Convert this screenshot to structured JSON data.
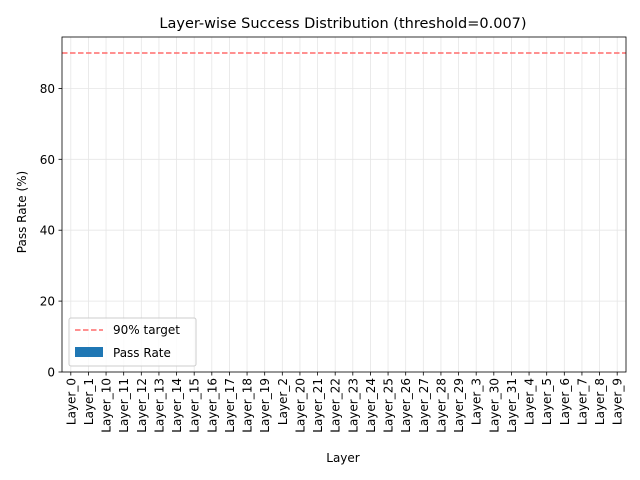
{
  "chart_data": {
    "type": "bar",
    "title": "Layer-wise Success Distribution (threshold=0.007)",
    "xlabel": "Layer",
    "ylabel": "Pass Rate (%)",
    "categories": [
      "Layer_0",
      "Layer_1",
      "Layer_10",
      "Layer_11",
      "Layer_12",
      "Layer_13",
      "Layer_14",
      "Layer_15",
      "Layer_16",
      "Layer_17",
      "Layer_18",
      "Layer_19",
      "Layer_2",
      "Layer_20",
      "Layer_21",
      "Layer_22",
      "Layer_23",
      "Layer_24",
      "Layer_25",
      "Layer_26",
      "Layer_27",
      "Layer_28",
      "Layer_29",
      "Layer_3",
      "Layer_30",
      "Layer_31",
      "Layer_4",
      "Layer_5",
      "Layer_6",
      "Layer_7",
      "Layer_8",
      "Layer_9"
    ],
    "series": [
      {
        "name": "Pass Rate",
        "values": [
          0,
          0,
          0,
          0,
          0,
          0,
          0,
          0,
          0,
          0,
          0,
          0,
          0,
          0,
          0,
          0,
          0,
          0,
          0,
          0,
          0,
          0,
          0,
          0,
          0,
          0,
          0,
          0,
          0,
          0,
          0,
          0
        ],
        "color": "#1f77b4"
      }
    ],
    "reference_line": {
      "name": "90% target",
      "value": 90,
      "color": "#ff6b6b",
      "style": "dashed"
    },
    "ylim": [
      0,
      94.5
    ],
    "yticks": [
      0,
      20,
      40,
      60,
      80
    ],
    "grid": true,
    "legend_position": "lower-left"
  }
}
